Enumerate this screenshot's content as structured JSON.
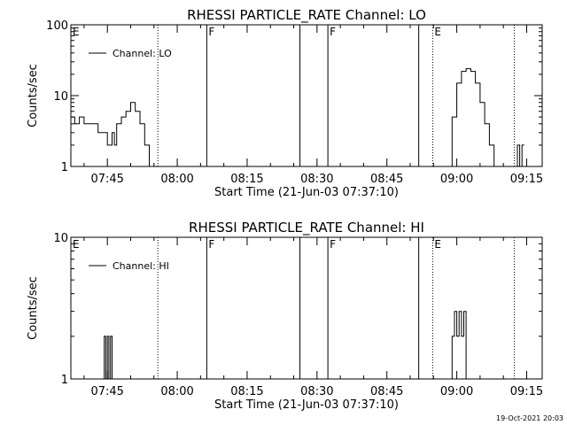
{
  "footer_timestamp": "19-Oct-2021 20:03",
  "chart_data": [
    {
      "type": "line",
      "title": "RHESSI PARTICLE_RATE Channel: LO",
      "xlabel": "Start Time (21-Jun-03 07:37:10)",
      "ylabel": "Counts/sec",
      "yscale": "log",
      "ylim": [
        1,
        100
      ],
      "xlim": [
        "07:37:10",
        "09:18:20"
      ],
      "y_ticks": [
        {
          "value": 1,
          "label": "1"
        },
        {
          "value": 10,
          "label": "10"
        },
        {
          "value": 100,
          "label": "100"
        }
      ],
      "x_ticks": [
        {
          "value": "07:45",
          "label": "07:45"
        },
        {
          "value": "08:00",
          "label": "08:00"
        },
        {
          "value": "08:15",
          "label": "08:15"
        },
        {
          "value": "08:30",
          "label": "08:30"
        },
        {
          "value": "08:45",
          "label": "08:45"
        },
        {
          "value": "09:00",
          "label": "09:00"
        },
        {
          "value": "09:15",
          "label": "09:15"
        }
      ],
      "legend": {
        "position": "top-left",
        "entries": [
          "Channel: LO"
        ]
      },
      "series": [
        {
          "name": "Channel: LO",
          "segments": [
            [
              [
                "07:37:10",
                5
              ],
              [
                "07:38:00",
                4
              ],
              [
                "07:39:00",
                5
              ],
              [
                "07:40:00",
                4
              ],
              [
                "07:41:00",
                4
              ],
              [
                "07:42:00",
                4
              ],
              [
                "07:43:00",
                3
              ],
              [
                "07:44:00",
                3
              ],
              [
                "07:45:00",
                2
              ],
              [
                "07:46:00",
                3
              ],
              [
                "07:46:30",
                2
              ],
              [
                "07:47:00",
                4
              ],
              [
                "07:48:00",
                5
              ],
              [
                "07:49:00",
                6
              ],
              [
                "07:50:00",
                8
              ],
              [
                "07:51:00",
                6
              ],
              [
                "07:52:00",
                4
              ],
              [
                "07:53:00",
                2
              ],
              [
                "07:54:00",
                1
              ]
            ],
            [
              [
                "08:58:20",
                1
              ],
              [
                "08:59:00",
                5
              ],
              [
                "09:00:00",
                15
              ],
              [
                "09:01:00",
                22
              ],
              [
                "09:02:00",
                24
              ],
              [
                "09:03:00",
                22
              ],
              [
                "09:04:00",
                15
              ],
              [
                "09:05:00",
                8
              ],
              [
                "09:06:00",
                4
              ],
              [
                "09:07:00",
                2
              ],
              [
                "09:08:00",
                1
              ]
            ],
            [
              [
                "09:12:40",
                1
              ],
              [
                "09:13:00",
                2
              ],
              [
                "09:13:30",
                1
              ],
              [
                "09:14:00",
                2
              ],
              [
                "09:14:30",
                2
              ]
            ]
          ]
        }
      ],
      "markers": [
        {
          "time": "07:37:10",
          "style": "none",
          "label": "E"
        },
        {
          "time": "07:55:50",
          "style": "dotted",
          "label": ""
        },
        {
          "time": "08:06:20",
          "style": "solid",
          "label": "F"
        },
        {
          "time": "08:26:20",
          "style": "solid",
          "label": ""
        },
        {
          "time": "08:32:20",
          "style": "solid",
          "label": "F"
        },
        {
          "time": "08:51:50",
          "style": "solid",
          "label": ""
        },
        {
          "time": "08:54:50",
          "style": "dotted",
          "label": "E"
        },
        {
          "time": "09:12:20",
          "style": "dotted",
          "label": ""
        }
      ]
    },
    {
      "type": "line",
      "title": "RHESSI PARTICLE_RATE Channel: HI",
      "xlabel": "Start Time (21-Jun-03 07:37:10)",
      "ylabel": "Counts/sec",
      "yscale": "log",
      "ylim": [
        1,
        10
      ],
      "xlim": [
        "07:37:10",
        "09:18:20"
      ],
      "y_ticks": [
        {
          "value": 1,
          "label": "1"
        },
        {
          "value": 10,
          "label": "10"
        }
      ],
      "x_ticks": [
        {
          "value": "07:45",
          "label": "07:45"
        },
        {
          "value": "08:00",
          "label": "08:00"
        },
        {
          "value": "08:15",
          "label": "08:15"
        },
        {
          "value": "08:30",
          "label": "08:30"
        },
        {
          "value": "08:45",
          "label": "08:45"
        },
        {
          "value": "09:00",
          "label": "09:00"
        },
        {
          "value": "09:15",
          "label": "09:15"
        }
      ],
      "legend": {
        "position": "top-left",
        "entries": [
          "Channel: HI"
        ]
      },
      "series": [
        {
          "name": "Channel: HI",
          "segments": [
            [
              [
                "07:44:00",
                1
              ],
              [
                "07:44:20",
                2
              ],
              [
                "07:44:40",
                1
              ],
              [
                "07:45:00",
                2
              ],
              [
                "07:45:20",
                1
              ],
              [
                "07:45:40",
                2
              ],
              [
                "07:46:00",
                1
              ]
            ],
            [
              [
                "08:58:20",
                1
              ],
              [
                "08:59:00",
                2
              ],
              [
                "08:59:30",
                3
              ],
              [
                "09:00:00",
                2
              ],
              [
                "09:00:30",
                3
              ],
              [
                "09:01:00",
                2
              ],
              [
                "09:01:30",
                3
              ],
              [
                "09:02:00",
                1
              ]
            ]
          ]
        }
      ],
      "markers": [
        {
          "time": "07:37:10",
          "style": "none",
          "label": "E"
        },
        {
          "time": "07:55:50",
          "style": "dotted",
          "label": ""
        },
        {
          "time": "08:06:20",
          "style": "solid",
          "label": "F"
        },
        {
          "time": "08:26:20",
          "style": "solid",
          "label": ""
        },
        {
          "time": "08:32:20",
          "style": "solid",
          "label": "F"
        },
        {
          "time": "08:51:50",
          "style": "solid",
          "label": ""
        },
        {
          "time": "08:54:50",
          "style": "dotted",
          "label": "E"
        },
        {
          "time": "09:12:20",
          "style": "dotted",
          "label": ""
        }
      ]
    }
  ]
}
